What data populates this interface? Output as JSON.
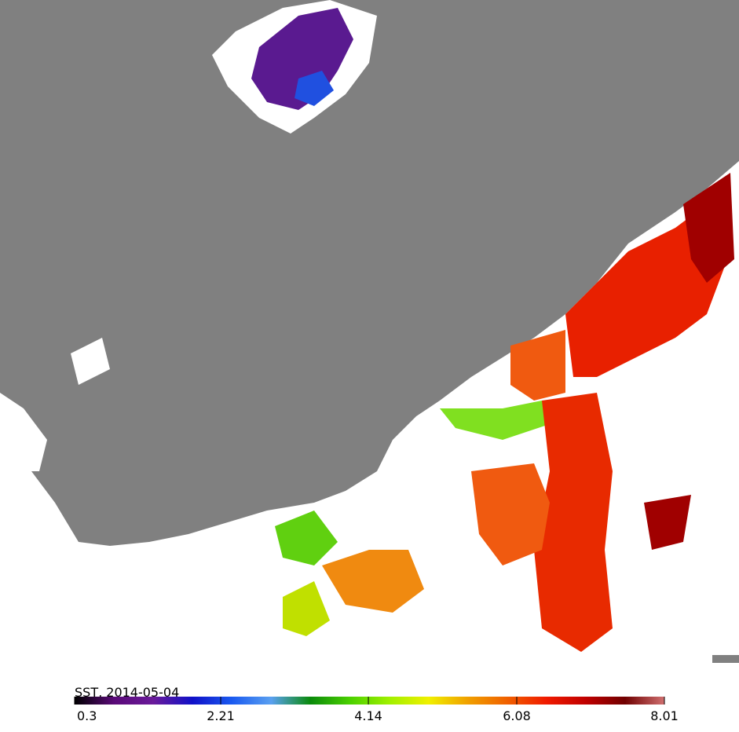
{
  "title": "SST, 2014-05-04",
  "colorbar": {
    "range": [
      0.3,
      8.01
    ],
    "ticks": [
      0.3,
      2.21,
      4.14,
      6.08,
      8.01
    ],
    "colors": [
      "#000000",
      "#5a0a78",
      "#6a1a9a",
      "#1010c8",
      "#1a5af0",
      "#5aa0f0",
      "#0a8a0a",
      "#4ad000",
      "#a0f000",
      "#f0f000",
      "#f0a000",
      "#f06000",
      "#f01a00",
      "#c00000",
      "#700000",
      "#d07070"
    ]
  }
}
